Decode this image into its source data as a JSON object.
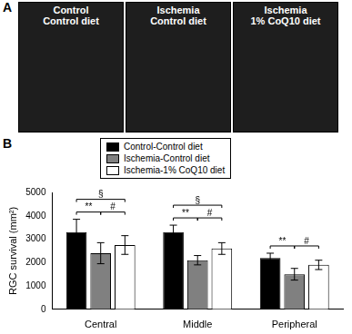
{
  "panel_a": {
    "panel_label": "A",
    "images": [
      {
        "lines": [
          "Control",
          "Control diet"
        ]
      },
      {
        "lines": [
          "Ischemia",
          "Control diet"
        ]
      },
      {
        "lines": [
          "Ischemia",
          "1% CoQ10 diet"
        ]
      }
    ]
  },
  "chart_data": {
    "type": "bar",
    "panel_label": "B",
    "y_label": "RGC survival (mm²)",
    "categories": [
      "Central",
      "Middle",
      "Peripheral"
    ],
    "series": [
      {
        "name": "Control-Control diet",
        "color": "#000000",
        "values": [
          3300,
          3300,
          2200
        ],
        "errors": [
          550,
          300,
          200
        ]
      },
      {
        "name": "Ischemia-Control diet",
        "color": "#808080",
        "values": [
          2400,
          2100,
          1500
        ],
        "errors": [
          450,
          200,
          250
        ]
      },
      {
        "name": "Ischemia-1% CoQ10 diet",
        "color": "#ffffff",
        "values": [
          2750,
          2600,
          1900
        ],
        "errors": [
          400,
          250,
          200
        ]
      }
    ],
    "ylim": [
      0,
      5000
    ],
    "yticks": [
      0,
      1000,
      2000,
      3000,
      4000,
      5000
    ],
    "grid": false,
    "legend": "top",
    "annotations": [
      {
        "category": "Central",
        "from": 0,
        "to": 1,
        "label": "**"
      },
      {
        "category": "Central",
        "from": 1,
        "to": 2,
        "label": "#"
      },
      {
        "category": "Central",
        "from": 0,
        "to": 2,
        "label": "§"
      },
      {
        "category": "Middle",
        "from": 0,
        "to": 1,
        "label": "**"
      },
      {
        "category": "Middle",
        "from": 1,
        "to": 2,
        "label": "#"
      },
      {
        "category": "Middle",
        "from": 0,
        "to": 2,
        "label": "§"
      },
      {
        "category": "Peripheral",
        "from": 0,
        "to": 1,
        "label": "**"
      },
      {
        "category": "Peripheral",
        "from": 1,
        "to": 2,
        "label": "#"
      }
    ]
  }
}
